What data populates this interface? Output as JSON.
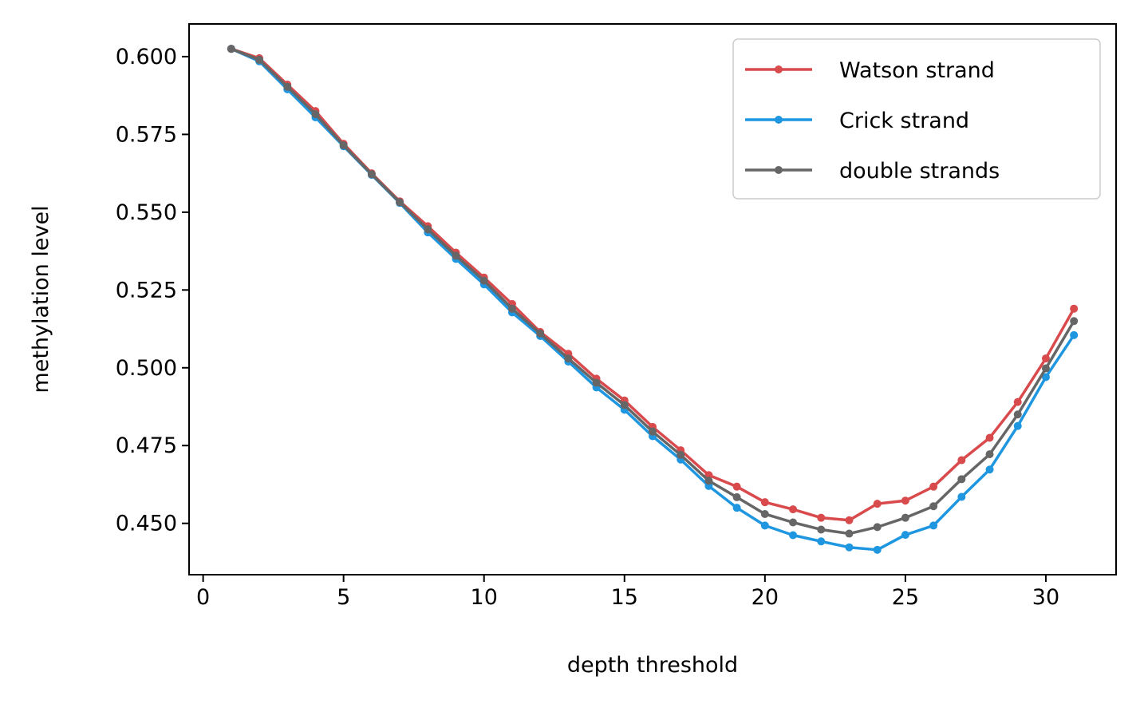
{
  "chart_data": {
    "type": "line",
    "title": "",
    "xlabel": "depth threshold",
    "ylabel": "methylation level",
    "xlim": [
      -0.5,
      32.5
    ],
    "ylim": [
      0.4335,
      0.6105
    ],
    "xticks": [
      0,
      5,
      10,
      15,
      20,
      25,
      30
    ],
    "yticks": [
      0.45,
      0.475,
      0.5,
      0.525,
      0.55,
      0.575,
      0.6
    ],
    "ytick_labels": [
      "0.450",
      "0.475",
      "0.500",
      "0.525",
      "0.550",
      "0.575",
      "0.600"
    ],
    "grid": false,
    "legend_position": "top-right",
    "x": [
      1,
      2,
      3,
      4,
      5,
      6,
      7,
      8,
      9,
      10,
      11,
      12,
      13,
      14,
      15,
      16,
      17,
      18,
      19,
      20,
      21,
      22,
      23,
      24,
      25,
      26,
      27,
      28,
      29,
      30,
      31
    ],
    "series": [
      {
        "name": "Watson strand",
        "color": "#d94a4d",
        "values": [
          0.6025,
          0.5995,
          0.591,
          0.5825,
          0.572,
          0.5625,
          0.5535,
          0.5455,
          0.537,
          0.529,
          0.5205,
          0.5115,
          0.5045,
          0.4965,
          0.4895,
          0.481,
          0.4735,
          0.4655,
          0.4618,
          0.4568,
          0.4545,
          0.4518,
          0.451,
          0.4563,
          0.4573,
          0.4618,
          0.4703,
          0.4775,
          0.489,
          0.503,
          0.519
        ]
      },
      {
        "name": "Crick strand",
        "color": "#1f96e0",
        "values": [
          0.6025,
          0.5985,
          0.5895,
          0.5805,
          0.5712,
          0.562,
          0.553,
          0.5435,
          0.535,
          0.5268,
          0.5178,
          0.5102,
          0.502,
          0.4937,
          0.4865,
          0.478,
          0.4705,
          0.462,
          0.455,
          0.4493,
          0.4462,
          0.4442,
          0.4423,
          0.4415,
          0.4463,
          0.4493,
          0.4585,
          0.4673,
          0.4813,
          0.497,
          0.5105
        ]
      },
      {
        "name": "double strands",
        "color": "#666666",
        "values": [
          0.6025,
          0.599,
          0.5903,
          0.5815,
          0.5715,
          0.5622,
          0.5532,
          0.5445,
          0.536,
          0.528,
          0.519,
          0.511,
          0.503,
          0.4952,
          0.488,
          0.4795,
          0.472,
          0.4637,
          0.4584,
          0.453,
          0.4503,
          0.448,
          0.4467,
          0.4488,
          0.4518,
          0.4555,
          0.4642,
          0.4722,
          0.485,
          0.4998,
          0.515
        ]
      }
    ]
  }
}
